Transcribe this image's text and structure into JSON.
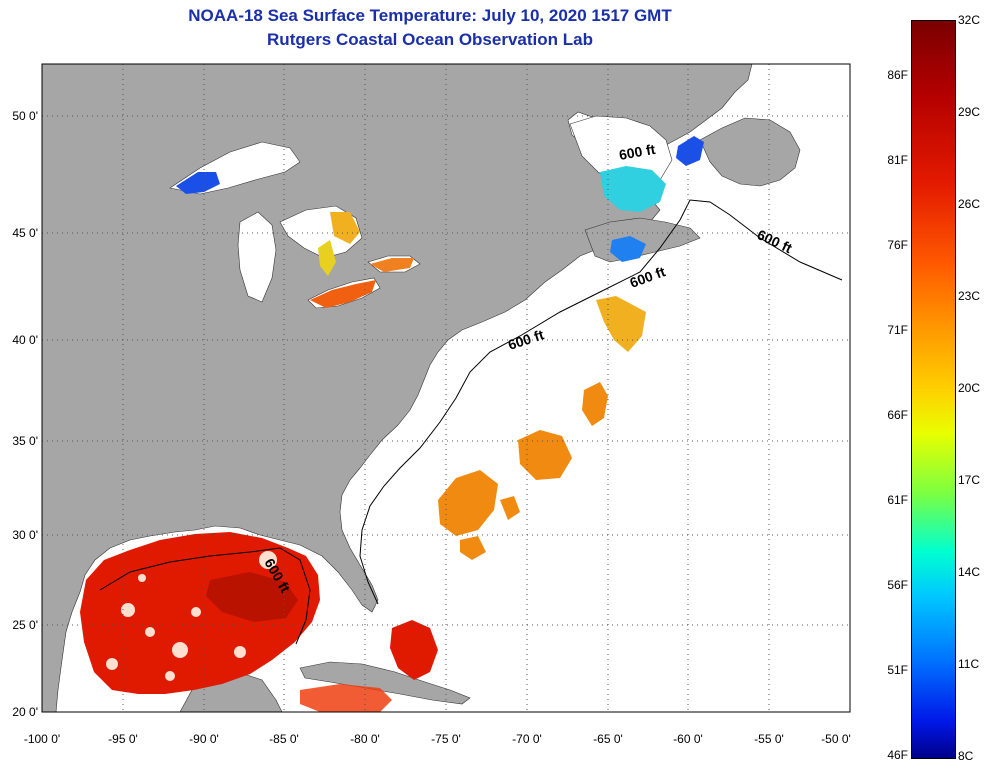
{
  "title": {
    "line1": "NOAA-18 Sea Surface Temperature:  July 10, 2020 1517 GMT",
    "line2": "Rutgers Coastal Ocean Observation Lab"
  },
  "axes": {
    "latitude_labels": [
      "50 0'",
      "45 0'",
      "40 0'",
      "35 0'",
      "30 0'",
      "25 0'",
      "20 0'"
    ],
    "longitude_labels": [
      "-100 0'",
      "-95 0'",
      "-90 0'",
      "-85 0'",
      "-80 0'",
      "-75 0'",
      "-70 0'",
      "-65 0'",
      "-60 0'",
      "-55 0'",
      "-50 0'"
    ]
  },
  "contour_label": "600 ft",
  "colorbar": {
    "fahrenheit": [
      "86F",
      "81F",
      "76F",
      "71F",
      "66F",
      "61F",
      "56F",
      "51F",
      "46F"
    ],
    "celsius": [
      "32C",
      "29C",
      "26C",
      "23C",
      "20C",
      "17C",
      "14C",
      "11C",
      "8C"
    ]
  },
  "colors": {
    "land": "#a6a6a6",
    "ocean": "#ffffff",
    "title": "#1a2fa8",
    "gulf_warm": "#e01a00",
    "stream_orange": "#f08a10",
    "cold_blue": "#1a50e8",
    "cyan": "#30d0e0"
  }
}
